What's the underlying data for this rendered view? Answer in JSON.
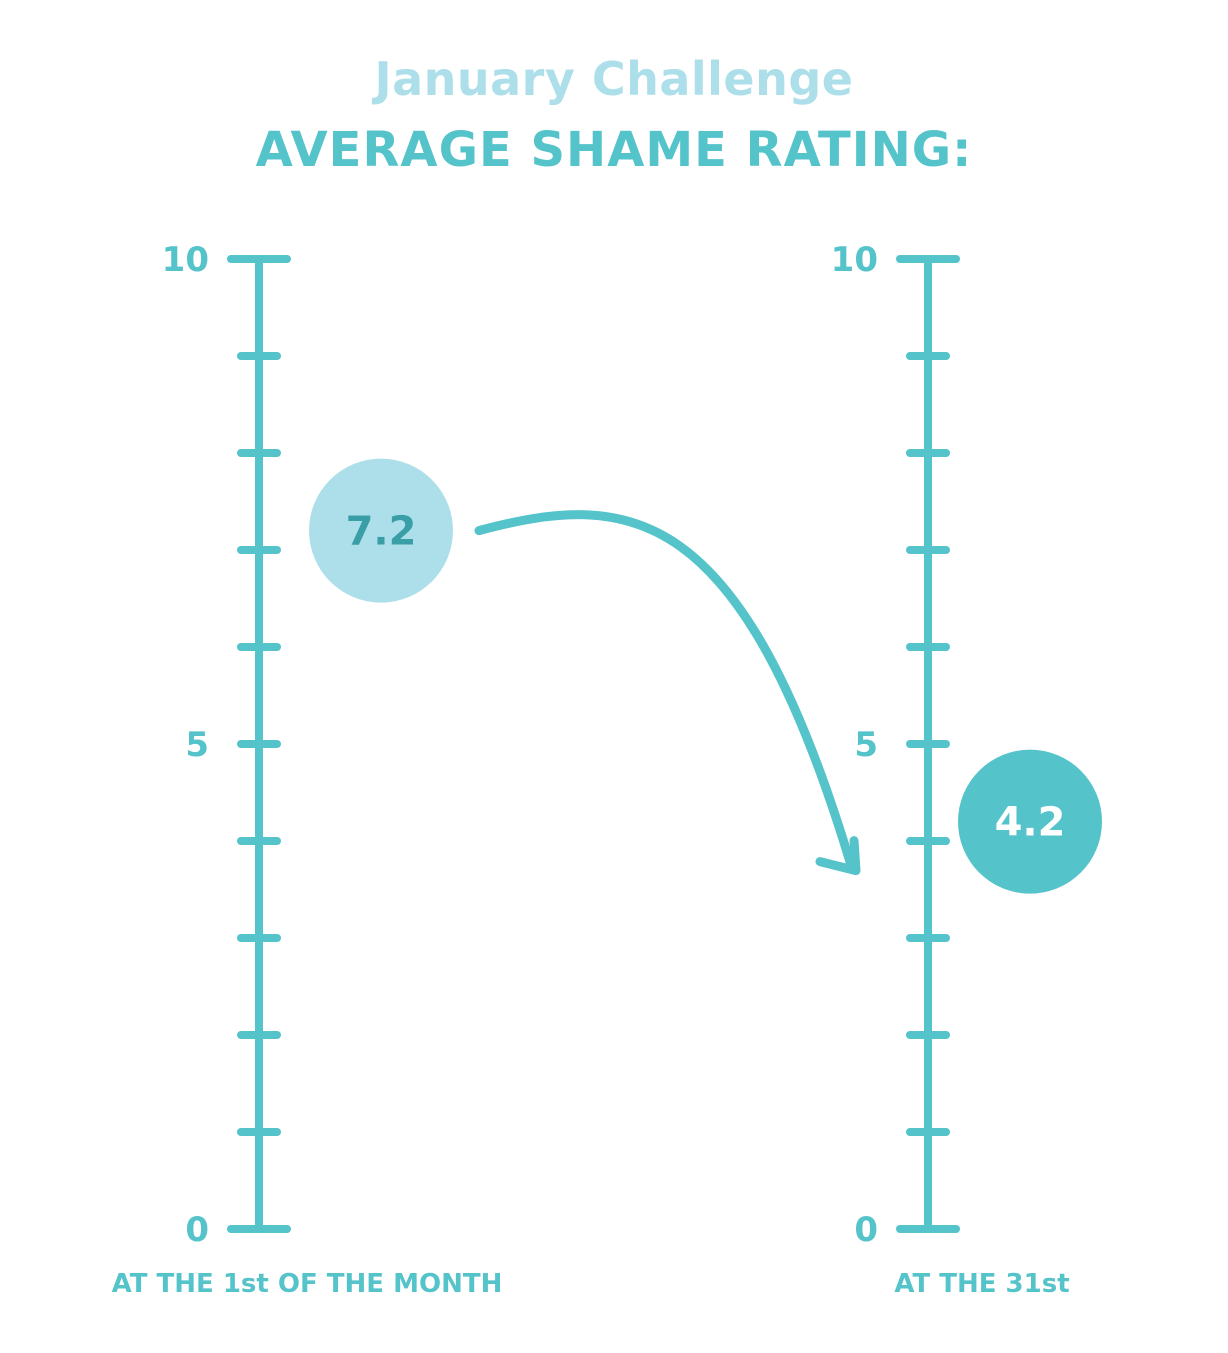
{
  "header": {
    "subtitle": "January Challenge",
    "title": "AVERAGE SHAME RATING:"
  },
  "colors": {
    "accent": "#55c3ca",
    "light": "#acdfea",
    "dark_text": "#3a9ea6",
    "white": "#ffffff"
  },
  "chart_data": {
    "type": "scatter",
    "title": "AVERAGE SHAME RATING:",
    "subtitle": "January Challenge",
    "ylim": [
      0,
      10
    ],
    "major_ticks": [
      0,
      5,
      10
    ],
    "minor_tick_step": 1,
    "scales": [
      {
        "caption": "AT THE 1st OF THE MONTH",
        "tick_labels": [
          "10",
          "5",
          "0"
        ],
        "value": 7.2,
        "value_label": "7.2",
        "marker_color": "#acdfea",
        "label_color": "#3a9ea6"
      },
      {
        "caption": "AT THE 31st",
        "tick_labels": [
          "10",
          "5",
          "0"
        ],
        "value": 4.2,
        "value_label": "4.2",
        "marker_color": "#55c3ca",
        "label_color": "#ffffff"
      }
    ],
    "arrow": {
      "from": 0,
      "to": 1
    }
  }
}
